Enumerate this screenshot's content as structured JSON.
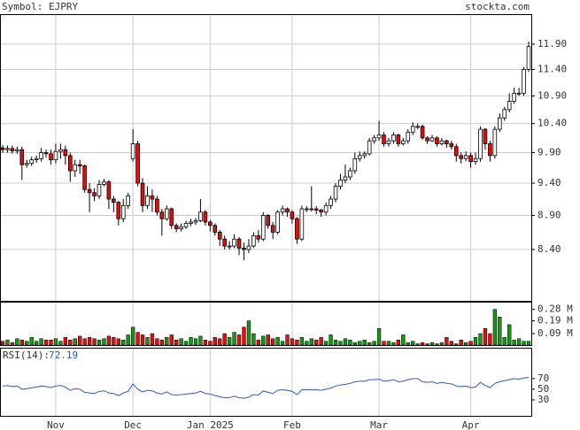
{
  "chart_data": [
    {
      "type": "candlestick",
      "title": "Symbol: EJPRY",
      "source": "stockta.com",
      "categories": [
        null,
        null,
        null,
        null,
        null,
        null,
        null,
        null,
        null,
        null,
        null,
        "Nov",
        null,
        null,
        null,
        null,
        null,
        null,
        null,
        null,
        null,
        null,
        null,
        null,
        null,
        null,
        null,
        "Dec",
        null,
        null,
        null,
        null,
        null,
        null,
        null,
        null,
        null,
        null,
        null,
        null,
        null,
        null,
        null,
        "Jan 2025",
        null,
        null,
        null,
        null,
        null,
        null,
        null,
        null,
        null,
        null,
        null,
        null,
        null,
        null,
        null,
        null,
        "Feb",
        null,
        null,
        null,
        null,
        null,
        null,
        null,
        null,
        null,
        null,
        null,
        null,
        null,
        null,
        null,
        null,
        null,
        "Mar",
        null,
        null,
        null,
        null,
        null,
        null,
        null,
        null,
        null,
        null,
        null,
        null,
        null,
        null,
        null,
        null,
        null,
        null,
        "Apr",
        null,
        null,
        null,
        null,
        null,
        null,
        null,
        null,
        null,
        null,
        null,
        null
      ],
      "open": [
        9.98,
        9.95,
        9.97,
        9.93,
        9.95,
        9.7,
        9.72,
        9.78,
        9.8,
        9.9,
        9.88,
        9.78,
        9.92,
        9.95,
        9.85,
        9.6,
        9.7,
        9.68,
        9.3,
        9.25,
        9.2,
        9.38,
        9.42,
        9.15,
        9.1,
        8.85,
        9.05,
        9.8,
        10.05,
        9.4,
        9.05,
        9.2,
        9.15,
        8.95,
        8.85,
        9.0,
        8.75,
        8.7,
        8.73,
        8.78,
        8.8,
        8.82,
        8.95,
        8.8,
        8.75,
        8.65,
        8.55,
        8.45,
        8.45,
        8.55,
        8.42,
        8.4,
        8.45,
        8.6,
        8.55,
        8.9,
        8.75,
        8.65,
        8.95,
        9.0,
        8.95,
        8.85,
        8.55,
        9.0,
        9.0,
        9.0,
        8.98,
        8.95,
        9.05,
        9.15,
        9.35,
        9.45,
        9.5,
        9.6,
        9.8,
        9.85,
        9.88,
        10.1,
        10.15,
        10.2,
        10.05,
        10.1,
        10.2,
        10.05,
        10.1,
        10.25,
        10.35,
        10.35,
        10.15,
        10.1,
        10.15,
        10.05,
        10.1,
        10.05,
        10.0,
        9.85,
        9.8,
        9.85,
        9.75,
        9.8,
        10.3,
        10.05,
        9.85,
        10.3,
        10.5,
        10.65,
        10.8,
        10.95,
        10.95,
        11.4
      ],
      "high": [
        10.03,
        10.02,
        10.02,
        10.0,
        10.0,
        9.78,
        9.83,
        9.85,
        9.98,
        9.95,
        9.95,
        10.05,
        10.05,
        10.02,
        9.9,
        9.78,
        9.78,
        9.7,
        9.4,
        9.32,
        9.45,
        9.47,
        9.45,
        9.2,
        9.12,
        9.15,
        9.25,
        10.3,
        10.1,
        9.48,
        9.35,
        9.3,
        9.2,
        9.0,
        9.05,
        9.02,
        8.78,
        8.78,
        8.82,
        8.85,
        8.86,
        9.15,
        8.98,
        8.83,
        8.78,
        8.68,
        8.6,
        8.52,
        8.62,
        8.58,
        8.5,
        8.55,
        8.65,
        8.68,
        8.95,
        8.92,
        8.8,
        8.98,
        9.05,
        9.02,
        8.98,
        8.88,
        9.05,
        9.04,
        9.35,
        9.04,
        9.0,
        9.1,
        9.2,
        9.4,
        9.55,
        9.7,
        9.65,
        9.9,
        9.92,
        9.92,
        10.15,
        10.2,
        10.45,
        10.25,
        10.15,
        10.25,
        10.22,
        10.15,
        10.3,
        10.42,
        10.4,
        10.38,
        10.18,
        10.2,
        10.18,
        10.15,
        10.12,
        10.1,
        10.05,
        9.9,
        9.92,
        9.9,
        9.9,
        10.35,
        10.32,
        10.1,
        10.35,
        10.58,
        10.7,
        10.95,
        11.05,
        11.05,
        11.45,
        11.95
      ],
      "low": [
        9.9,
        9.9,
        9.88,
        9.88,
        9.45,
        9.65,
        9.68,
        9.73,
        9.75,
        9.82,
        9.7,
        9.72,
        9.8,
        9.7,
        9.42,
        9.5,
        9.55,
        9.25,
        8.95,
        9.12,
        9.15,
        9.35,
        9.0,
        8.95,
        8.75,
        8.8,
        9.0,
        9.75,
        9.35,
        8.95,
        9.0,
        8.95,
        8.9,
        8.6,
        8.82,
        8.7,
        8.65,
        8.66,
        8.7,
        8.74,
        8.76,
        8.8,
        8.75,
        8.66,
        8.6,
        8.45,
        8.4,
        8.4,
        8.42,
        8.32,
        8.25,
        8.35,
        8.42,
        8.5,
        8.52,
        8.7,
        8.55,
        8.62,
        8.9,
        8.88,
        8.78,
        8.48,
        8.52,
        8.95,
        8.96,
        8.92,
        8.88,
        8.9,
        9.0,
        9.1,
        9.3,
        9.4,
        9.45,
        9.55,
        9.75,
        9.8,
        9.85,
        10.05,
        10.1,
        10.0,
        10.0,
        10.05,
        10.0,
        10.02,
        10.05,
        10.2,
        10.3,
        10.12,
        10.05,
        10.08,
        10.0,
        10.02,
        9.98,
        9.95,
        9.75,
        9.72,
        9.76,
        9.65,
        9.7,
        9.75,
        9.95,
        9.75,
        9.8,
        10.25,
        10.45,
        10.6,
        10.75,
        10.9,
        10.9,
        11.35
      ],
      "close": [
        9.95,
        9.97,
        9.93,
        9.95,
        9.7,
        9.72,
        9.78,
        9.8,
        9.9,
        9.88,
        9.78,
        9.92,
        9.95,
        9.85,
        9.6,
        9.7,
        9.68,
        9.3,
        9.25,
        9.2,
        9.38,
        9.42,
        9.15,
        9.1,
        8.85,
        9.05,
        9.2,
        10.05,
        9.4,
        9.05,
        9.2,
        9.15,
        8.95,
        8.85,
        9.0,
        8.75,
        8.7,
        8.73,
        8.78,
        8.8,
        8.82,
        8.95,
        8.8,
        8.75,
        8.65,
        8.55,
        8.45,
        8.45,
        8.55,
        8.42,
        8.4,
        8.45,
        8.6,
        8.55,
        8.9,
        8.75,
        8.65,
        8.95,
        9.0,
        8.95,
        8.85,
        8.55,
        9.0,
        9.0,
        9.0,
        8.98,
        8.95,
        9.05,
        9.15,
        9.35,
        9.45,
        9.5,
        9.6,
        9.8,
        9.85,
        9.88,
        10.1,
        10.15,
        10.2,
        10.05,
        10.1,
        10.2,
        10.05,
        10.1,
        10.25,
        10.35,
        10.35,
        10.15,
        10.1,
        10.15,
        10.05,
        10.1,
        10.05,
        10.0,
        9.85,
        9.8,
        9.85,
        9.75,
        9.8,
        10.3,
        10.05,
        9.85,
        10.3,
        10.5,
        10.65,
        10.8,
        10.95,
        10.95,
        11.4,
        11.85
      ],
      "up_color": "#ffffff",
      "down_color": "#dd1111",
      "ylim": [
        7.7,
        12.52
      ],
      "log_scale": true,
      "grid": true,
      "yticks": [
        {
          "value": 8.4,
          "label": "8.40"
        },
        {
          "value": 8.9,
          "label": "8.90"
        },
        {
          "value": 9.4,
          "label": "9.40"
        },
        {
          "value": 9.9,
          "label": "9.90"
        },
        {
          "value": 10.4,
          "label": "10.40"
        },
        {
          "value": 10.9,
          "label": "10.90"
        },
        {
          "value": 11.4,
          "label": "11.40"
        },
        {
          "value": 11.9,
          "label": "11.90"
        }
      ]
    },
    {
      "type": "bar",
      "values": [
        0.03,
        0.04,
        0.02,
        0.05,
        0.04,
        0.03,
        0.06,
        0.03,
        0.05,
        0.04,
        0.04,
        0.05,
        0.03,
        0.06,
        0.04,
        0.05,
        0.07,
        0.05,
        0.06,
        0.05,
        0.04,
        0.05,
        0.07,
        0.06,
        0.05,
        0.04,
        0.08,
        0.14,
        0.1,
        0.08,
        0.06,
        0.09,
        0.05,
        0.04,
        0.06,
        0.08,
        0.04,
        0.05,
        0.03,
        0.06,
        0.05,
        0.07,
        0.04,
        0.03,
        0.06,
        0.05,
        0.09,
        0.06,
        0.1,
        0.08,
        0.14,
        0.19,
        0.09,
        0.04,
        0.07,
        0.08,
        0.05,
        0.06,
        0.03,
        0.08,
        0.05,
        0.04,
        0.06,
        0.03,
        0.05,
        0.04,
        0.06,
        0.03,
        0.08,
        0.04,
        0.03,
        0.05,
        0.04,
        0.02,
        0.03,
        0.04,
        0.02,
        0.03,
        0.13,
        0.03,
        0.03,
        0.02,
        0.04,
        0.08,
        0.02,
        0.03,
        0.01,
        0.02,
        0.01,
        0.02,
        0.01,
        0.02,
        0.06,
        0.03,
        0.01,
        0.04,
        0.02,
        0.03,
        0.06,
        0.09,
        0.13,
        0.09,
        0.28,
        0.22,
        0.06,
        0.16,
        0.04,
        0.05,
        0.03,
        0.03
      ],
      "up_color": "#119911",
      "down_color": "#dd1111",
      "ylim": [
        0,
        0.34
      ],
      "yticks": [
        {
          "value": 0.09,
          "label": "0.09 M"
        },
        {
          "value": 0.19,
          "label": "0.19 M"
        },
        {
          "value": 0.28,
          "label": "0.28 M"
        }
      ]
    },
    {
      "type": "line",
      "title": "RSI(14):",
      "color": "#3355cc",
      "values": [
        56,
        57,
        55,
        56,
        50,
        51,
        53,
        54,
        56,
        55,
        53,
        56,
        57,
        54,
        48,
        51,
        50,
        44,
        43,
        42,
        46,
        47,
        43,
        42,
        38,
        43,
        46,
        60,
        50,
        45,
        48,
        47,
        43,
        41,
        45,
        40,
        39,
        40,
        41,
        42,
        43,
        46,
        42,
        41,
        38,
        36,
        34,
        34,
        37,
        34,
        33,
        35,
        40,
        39,
        47,
        44,
        42,
        48,
        49,
        48,
        46,
        40,
        49,
        49,
        49,
        49,
        48,
        50,
        52,
        56,
        58,
        59,
        61,
        64,
        65,
        65,
        68,
        68,
        69,
        65,
        66,
        68,
        64,
        65,
        68,
        70,
        70,
        64,
        63,
        64,
        61,
        63,
        61,
        60,
        56,
        55,
        56,
        53,
        54,
        63,
        57,
        53,
        61,
        64,
        66,
        68,
        70,
        69,
        71,
        72.19
      ],
      "ylim": [
        0,
        128
      ],
      "yticks": [
        30,
        50,
        70
      ]
    }
  ]
}
